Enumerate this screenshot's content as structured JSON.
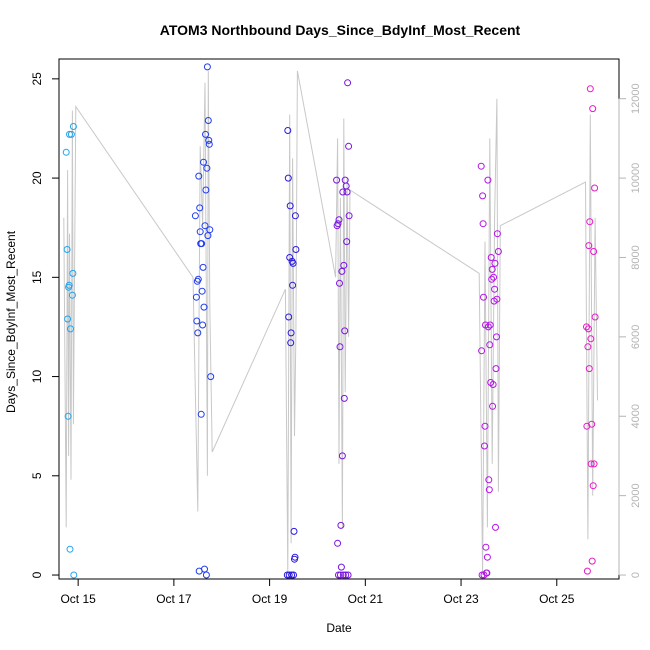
{
  "chart_data": {
    "type": "scatter",
    "title": "ATOM3 Northbound Days_Since_BdyInf_Most_Recent",
    "xlabel": "Date",
    "ylabel": "Days_Since_BdyInf_Most_Recent",
    "x_unit": "days in October",
    "xlim": [
      14.6,
      26.3
    ],
    "ylim": [
      -0.2,
      26.0
    ],
    "y2lim": [
      -100,
      13000
    ],
    "x_ticks": [
      {
        "value": 15,
        "label": "Oct 15"
      },
      {
        "value": 17,
        "label": "Oct 17"
      },
      {
        "value": 19,
        "label": "Oct 19"
      },
      {
        "value": 21,
        "label": "Oct 21"
      },
      {
        "value": 23,
        "label": "Oct 23"
      },
      {
        "value": 25,
        "label": "Oct 25"
      }
    ],
    "y_ticks": [
      0,
      5,
      10,
      15,
      20,
      25
    ],
    "y2_ticks": [
      0,
      2000,
      4000,
      6000,
      8000,
      10000,
      12000
    ],
    "grid": false,
    "colors": {
      "line": "#c8c8c8",
      "right_axis": "#b4b4b4",
      "axis": "#000000"
    },
    "series": [
      {
        "color": "#1ea5f0",
        "points": [
          [
            14.75,
            21.3
          ],
          [
            14.77,
            16.4
          ],
          [
            14.78,
            12.9
          ],
          [
            14.79,
            8.0
          ],
          [
            14.8,
            14.5
          ],
          [
            14.81,
            14.6
          ],
          [
            14.82,
            22.2
          ],
          [
            14.83,
            1.3
          ],
          [
            14.84,
            12.4
          ],
          [
            14.86,
            22.2
          ],
          [
            14.88,
            14.1
          ],
          [
            14.89,
            15.2
          ],
          [
            14.9,
            22.6
          ],
          [
            14.91,
            0.0
          ]
        ]
      },
      {
        "color": "#1e3cf0",
        "points": [
          [
            17.45,
            18.1
          ],
          [
            17.47,
            14.0
          ],
          [
            17.48,
            12.8
          ],
          [
            17.49,
            14.8
          ],
          [
            17.5,
            12.2
          ],
          [
            17.51,
            14.9
          ],
          [
            17.52,
            20.1
          ],
          [
            17.53,
            0.2
          ],
          [
            17.54,
            18.5
          ],
          [
            17.55,
            17.3
          ],
          [
            17.56,
            16.7
          ],
          [
            17.57,
            8.1
          ],
          [
            17.58,
            16.7
          ],
          [
            17.59,
            14.3
          ],
          [
            17.6,
            12.6
          ],
          [
            17.61,
            15.5
          ],
          [
            17.62,
            20.8
          ],
          [
            17.63,
            13.5
          ],
          [
            17.64,
            0.3
          ],
          [
            17.65,
            17.6
          ],
          [
            17.66,
            22.2
          ],
          [
            17.67,
            19.4
          ],
          [
            17.68,
            0.0
          ],
          [
            17.69,
            20.5
          ],
          [
            17.7,
            25.6
          ],
          [
            17.71,
            17.1
          ],
          [
            17.72,
            22.9
          ],
          [
            17.73,
            21.9
          ],
          [
            17.74,
            21.7
          ],
          [
            17.75,
            17.4
          ],
          [
            17.77,
            10.0
          ]
        ]
      },
      {
        "color": "#2a18e0",
        "points": [
          [
            19.37,
            0.0
          ],
          [
            19.38,
            22.4
          ],
          [
            19.39,
            20.0
          ],
          [
            19.4,
            13.0
          ],
          [
            19.41,
            0.0
          ],
          [
            19.42,
            16.0
          ],
          [
            19.43,
            18.6
          ],
          [
            19.44,
            11.7
          ],
          [
            19.45,
            12.2
          ],
          [
            19.46,
            0.0
          ],
          [
            19.47,
            15.8
          ],
          [
            19.48,
            14.6
          ],
          [
            19.49,
            15.7
          ],
          [
            19.5,
            0.0
          ],
          [
            19.51,
            2.2
          ],
          [
            19.52,
            0.8
          ],
          [
            19.53,
            0.9
          ],
          [
            19.54,
            18.1
          ],
          [
            19.55,
            16.4
          ]
        ]
      },
      {
        "color": "#7a14e0",
        "points": [
          [
            20.4,
            19.9
          ],
          [
            20.41,
            17.6
          ],
          [
            20.42,
            1.6
          ],
          [
            20.43,
            17.7
          ],
          [
            20.44,
            0.0
          ],
          [
            20.45,
            17.9
          ],
          [
            20.46,
            14.7
          ],
          [
            20.47,
            11.5
          ],
          [
            20.48,
            0.0
          ],
          [
            20.49,
            2.5
          ],
          [
            20.5,
            0.4
          ],
          [
            20.51,
            15.3
          ],
          [
            20.52,
            6.0
          ],
          [
            20.53,
            19.3
          ],
          [
            20.54,
            0.0
          ],
          [
            20.55,
            15.6
          ],
          [
            20.56,
            8.9
          ],
          [
            20.57,
            12.3
          ],
          [
            20.58,
            19.9
          ],
          [
            20.59,
            0.0
          ],
          [
            20.6,
            19.6
          ],
          [
            20.61,
            16.8
          ],
          [
            20.62,
            19.3
          ],
          [
            20.63,
            24.8
          ],
          [
            20.64,
            0.0
          ],
          [
            20.65,
            21.6
          ],
          [
            20.66,
            18.1
          ]
        ]
      },
      {
        "color": "#b414e6",
        "points": [
          [
            23.42,
            20.6
          ],
          [
            23.43,
            11.3
          ],
          [
            23.44,
            0.0
          ],
          [
            23.45,
            19.1
          ],
          [
            23.46,
            17.7
          ],
          [
            23.47,
            14.0
          ],
          [
            23.48,
            0.0
          ],
          [
            23.49,
            6.5
          ],
          [
            23.5,
            7.5
          ],
          [
            23.51,
            12.6
          ],
          [
            23.52,
            1.4
          ],
          [
            23.53,
            0.1
          ],
          [
            23.54,
            0.1
          ],
          [
            23.55,
            0.9
          ],
          [
            23.56,
            19.9
          ],
          [
            23.57,
            12.5
          ],
          [
            23.58,
            4.8
          ],
          [
            23.59,
            4.3
          ],
          [
            23.6,
            11.6
          ],
          [
            23.61,
            12.6
          ],
          [
            23.62,
            9.7
          ],
          [
            23.63,
            16.0
          ],
          [
            23.64,
            14.9
          ],
          [
            23.65,
            15.4
          ],
          [
            23.66,
            8.5
          ],
          [
            23.67,
            9.6
          ],
          [
            23.68,
            15.0
          ],
          [
            23.69,
            13.8
          ],
          [
            23.7,
            14.4
          ],
          [
            23.71,
            15.7
          ],
          [
            23.72,
            2.4
          ],
          [
            23.73,
            10.4
          ],
          [
            23.74,
            12.0
          ],
          [
            23.75,
            13.9
          ],
          [
            23.76,
            17.2
          ],
          [
            23.78,
            16.3
          ]
        ]
      },
      {
        "color": "#e619c8",
        "points": [
          [
            25.62,
            12.5
          ],
          [
            25.63,
            7.5
          ],
          [
            25.64,
            0.2
          ],
          [
            25.65,
            11.5
          ],
          [
            25.66,
            12.4
          ],
          [
            25.67,
            16.6
          ],
          [
            25.68,
            10.4
          ],
          [
            25.69,
            17.8
          ],
          [
            25.7,
            24.5
          ],
          [
            25.71,
            11.9
          ],
          [
            25.72,
            5.6
          ],
          [
            25.73,
            7.6
          ],
          [
            25.74,
            0.7
          ],
          [
            25.75,
            23.5
          ],
          [
            25.76,
            4.5
          ],
          [
            25.77,
            16.3
          ],
          [
            25.78,
            5.6
          ],
          [
            25.79,
            19.5
          ],
          [
            25.8,
            13.0
          ]
        ]
      }
    ],
    "line_series": {
      "color": "#c8c8c8",
      "axis": "right",
      "x": [
        14.7,
        14.75,
        14.78,
        14.8,
        14.82,
        14.85,
        14.88,
        14.9,
        14.95,
        17.4,
        17.5,
        17.55,
        17.6,
        17.65,
        17.7,
        17.72,
        17.75,
        17.8,
        19.33,
        19.38,
        19.42,
        19.45,
        19.48,
        19.52,
        19.55,
        19.58,
        20.38,
        20.42,
        20.45,
        20.48,
        20.52,
        20.55,
        20.58,
        20.62,
        20.65,
        20.68,
        23.38,
        23.45,
        23.5,
        23.55,
        23.6,
        23.65,
        23.7,
        23.75,
        23.78,
        23.82,
        25.6,
        25.65,
        25.7,
        25.75,
        25.8,
        25.85
      ],
      "y": [
        9000,
        1200,
        10200,
        3000,
        8600,
        2400,
        11700,
        3800,
        11800,
        7500,
        1600,
        10800,
        8800,
        12400,
        2500,
        12700,
        6800,
        3100,
        7200,
        0,
        11600,
        800,
        10500,
        3500,
        6100,
        12700,
        7500,
        11000,
        2800,
        9500,
        1200,
        11500,
        4600,
        10000,
        6000,
        9700,
        7600,
        0,
        8400,
        1200,
        11000,
        2800,
        9000,
        12000,
        2100,
        8800,
        9900,
        900,
        11600,
        2000,
        9000,
        4400
      ]
    }
  }
}
